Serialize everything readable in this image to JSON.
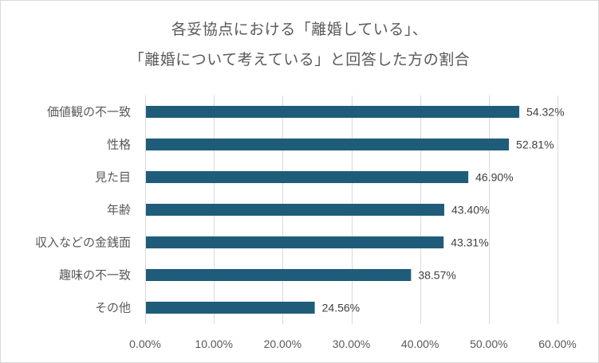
{
  "chart_data": {
    "type": "bar",
    "orientation": "horizontal",
    "title_lines": [
      "各妥協点における「離婚している」、",
      "「離婚について考えている」と回答した方の割合"
    ],
    "categories": [
      "価値観の不一致",
      "性格",
      "見た目",
      "年齢",
      "収入などの金銭面",
      "趣味の不一致",
      "その他"
    ],
    "values": [
      54.32,
      52.81,
      46.9,
      43.4,
      43.31,
      38.57,
      24.56
    ],
    "data_labels": [
      "54.32%",
      "52.81%",
      "46.90%",
      "43.40%",
      "43.31%",
      "38.57%",
      "24.56%"
    ],
    "x_ticks": [
      0,
      10,
      20,
      30,
      40,
      50,
      60
    ],
    "x_tick_labels": [
      "0.00%",
      "10.00%",
      "20.00%",
      "30.00%",
      "40.00%",
      "50.00%",
      "60.00%"
    ],
    "xlim": [
      0,
      60
    ],
    "xlabel": "",
    "ylabel": "",
    "grid": true,
    "legend": "none",
    "bar_color": "#1f5c7a",
    "grid_color": "#d9d9d9"
  }
}
